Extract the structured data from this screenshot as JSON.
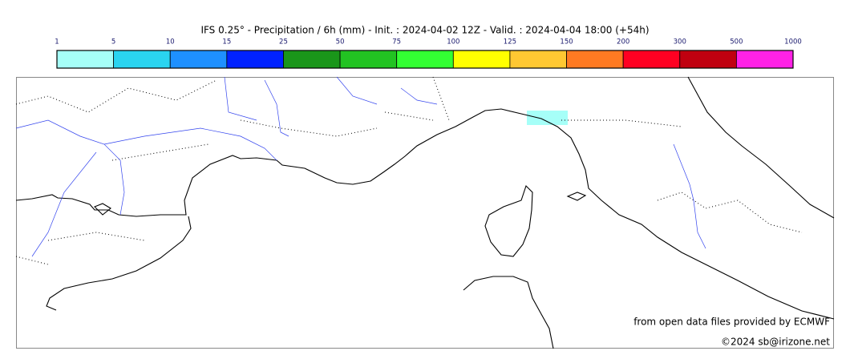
{
  "title": "IFS 0.25° - Precipitation / 6h (mm) - Init. : 2024-04-02 12Z - Valid. : 2024-04-04 18:00 (+54h)",
  "colorbar": {
    "ticks": [
      1,
      5,
      10,
      15,
      25,
      50,
      75,
      100,
      125,
      150,
      200,
      300,
      500,
      1000
    ],
    "colors": [
      "#a6fff8",
      "#2ad4f0",
      "#1e90ff",
      "#0022ff",
      "#1a961a",
      "#22c322",
      "#33ff33",
      "#ffff00",
      "#ffc832",
      "#ff7a22",
      "#ff0022",
      "#c00010",
      "#ff22e6"
    ]
  },
  "credits": [
    "from open data files provided by ECMWF",
    "©2024 sb@irizone.net"
  ]
}
